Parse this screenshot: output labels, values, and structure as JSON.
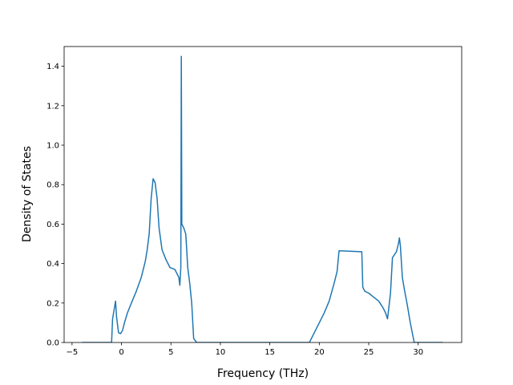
{
  "chart_data": {
    "type": "line",
    "title": "",
    "xlabel": "Frequency (THz)",
    "ylabel": "Density of States",
    "xlim": [
      -5.8,
      34.4
    ],
    "ylim": [
      0,
      1.5
    ],
    "grid": false,
    "legend": "none",
    "line_color": "#1f77b4",
    "xticks": [
      -5,
      0,
      5,
      10,
      15,
      20,
      25,
      30
    ],
    "xtick_labels": [
      "−5",
      "0",
      "5",
      "10",
      "15",
      "20",
      "25",
      "30"
    ],
    "yticks": [
      0.0,
      0.2,
      0.4,
      0.6,
      0.8,
      1.0,
      1.2,
      1.4
    ],
    "ytick_labels": [
      "0.0",
      "0.2",
      "0.4",
      "0.6",
      "0.8",
      "1.0",
      "1.2",
      "1.4"
    ],
    "series": [
      {
        "x": [
          -4.0,
          -1.0,
          -0.9,
          -0.6,
          -0.5,
          -0.3,
          -0.1,
          0.1,
          0.3,
          0.6,
          1.0,
          1.5,
          2.0,
          2.4,
          2.6,
          2.8,
          3.0,
          3.2,
          3.4,
          3.6,
          3.8,
          4.1,
          4.5,
          4.9,
          5.4,
          5.8,
          5.9,
          6.0,
          6.05,
          6.1,
          6.2,
          6.3,
          6.5,
          6.7,
          6.9,
          7.1,
          7.3,
          7.6,
          19.0,
          19.5,
          20.0,
          20.5,
          21.0,
          21.5,
          21.8,
          22.0,
          24.3,
          24.4,
          24.6,
          25.0,
          25.5,
          26.0,
          26.4,
          26.7,
          26.9,
          27.2,
          27.4,
          27.8,
          28.0,
          28.1,
          28.2,
          28.4,
          28.6,
          28.9,
          29.2,
          29.6,
          32.5
        ],
        "y": [
          0.0,
          0.0,
          0.12,
          0.21,
          0.13,
          0.05,
          0.045,
          0.06,
          0.1,
          0.15,
          0.2,
          0.26,
          0.33,
          0.41,
          0.47,
          0.55,
          0.73,
          0.83,
          0.81,
          0.73,
          0.58,
          0.47,
          0.42,
          0.38,
          0.37,
          0.33,
          0.29,
          0.38,
          1.45,
          0.6,
          0.59,
          0.58,
          0.55,
          0.38,
          0.3,
          0.2,
          0.02,
          0.0,
          0.0,
          0.05,
          0.1,
          0.15,
          0.21,
          0.3,
          0.36,
          0.465,
          0.46,
          0.28,
          0.26,
          0.25,
          0.23,
          0.21,
          0.18,
          0.15,
          0.12,
          0.25,
          0.43,
          0.46,
          0.5,
          0.53,
          0.49,
          0.33,
          0.27,
          0.19,
          0.1,
          0.0,
          0.0
        ]
      }
    ]
  }
}
